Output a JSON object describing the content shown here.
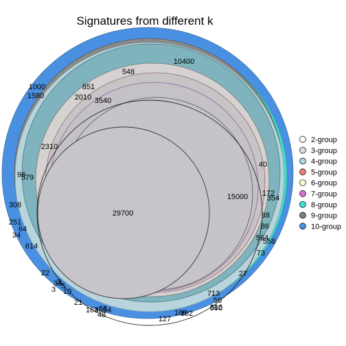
{
  "title": "Signatures from different k",
  "legend": [
    {
      "label": "2-group",
      "color": "#ffffff"
    },
    {
      "label": "3-group",
      "color": "#dcdcdc"
    },
    {
      "label": "4-group",
      "color": "#add8e6"
    },
    {
      "label": "5-group",
      "color": "#f08080"
    },
    {
      "label": "6-group",
      "color": "#fafad2"
    },
    {
      "label": "7-group",
      "color": "#da70d6"
    },
    {
      "label": "8-group",
      "color": "#40e0d0"
    },
    {
      "label": "9-group",
      "color": "#808080"
    },
    {
      "label": "10-group",
      "color": "#4a90e2"
    }
  ],
  "region_labels": [
    "10400",
    "548",
    "1000",
    "1580",
    "851",
    "2010",
    "3540",
    "2310",
    "40",
    "172",
    "15000",
    "29700",
    "96",
    "579",
    "308",
    "88",
    "86",
    "354",
    "251",
    "64",
    "34",
    "564",
    "558",
    "73",
    "614",
    "22",
    "27",
    "713",
    "56",
    "616",
    "560",
    "166",
    "162",
    "127",
    "21",
    "68",
    "163",
    "48",
    "4054",
    "2",
    "5",
    "10",
    "33",
    "3"
  ]
}
